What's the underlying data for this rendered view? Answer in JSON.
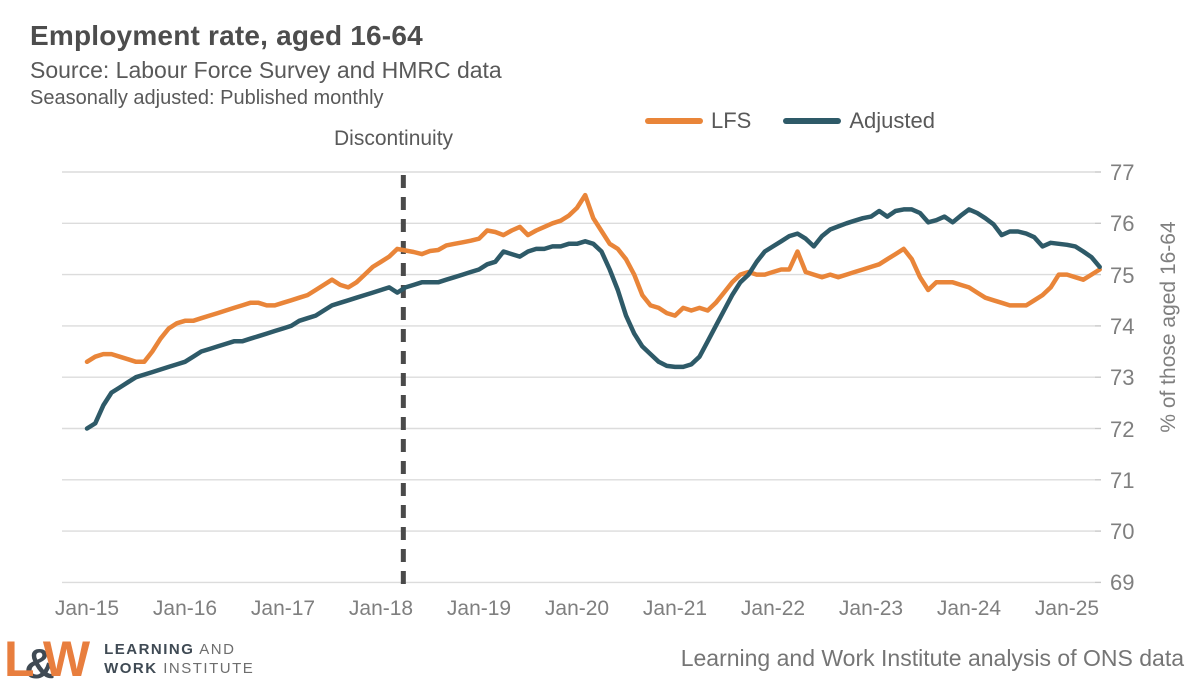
{
  "header": {
    "title": "Employment rate, aged 16-64",
    "source_line": "Source: Labour Force Survey and HMRC data",
    "adjusted_line": "Seasonally adjusted: Published monthly"
  },
  "annotations": {
    "discontinuity_label": "Discontinuity",
    "discontinuity_position": "2018-03"
  },
  "legend": {
    "items": [
      {
        "label": "LFS",
        "color": "#E98539"
      },
      {
        "label": "Adjusted",
        "color": "#2E5A68"
      }
    ]
  },
  "colors": {
    "lfs_orange": "#E98539",
    "adjusted_teal": "#2E5A68",
    "gridline": "#DCDCDC",
    "tick": "#C8C8C8",
    "dashed_line": "#4A4A4A",
    "title_gray": "#4D4D4D",
    "axis_label_gray": "#7F7F7F"
  },
  "chart_data": {
    "type": "line",
    "title": "Employment rate, aged 16-64",
    "ylabel": "% of those aged 16-64",
    "ylim": [
      69,
      77
    ],
    "y_ticks": [
      69,
      70,
      71,
      72,
      73,
      74,
      75,
      76,
      77
    ],
    "x_tick_labels": [
      "Jan-15",
      "Jan-16",
      "Jan-17",
      "Jan-18",
      "Jan-19",
      "Jan-20",
      "Jan-21",
      "Jan-22",
      "Jan-23",
      "Jan-24",
      "Jan-25"
    ],
    "x_start": "2015-01",
    "x_end": "2025-05",
    "interval": "monthly",
    "grid": "horizontal-only",
    "legend_position": "top",
    "series": [
      {
        "name": "LFS",
        "color": "#E98539",
        "monthly_values": [
          73.3,
          73.4,
          73.45,
          73.45,
          73.4,
          73.35,
          73.3,
          73.3,
          73.5,
          73.75,
          73.95,
          74.05,
          74.1,
          74.1,
          74.15,
          74.2,
          74.25,
          74.3,
          74.35,
          74.4,
          74.45,
          74.45,
          74.4,
          74.4,
          74.45,
          74.5,
          74.55,
          74.6,
          74.7,
          74.8,
          74.9,
          74.8,
          74.75,
          74.85,
          75.0,
          75.15,
          75.25,
          75.35,
          75.5,
          75.47,
          75.44,
          75.4,
          75.46,
          75.48,
          75.57,
          75.6,
          75.63,
          75.66,
          75.7,
          75.86,
          75.83,
          75.77,
          75.86,
          75.93,
          75.77,
          75.86,
          75.93,
          76.0,
          76.05,
          76.15,
          76.3,
          76.55,
          76.1,
          75.85,
          75.6,
          75.5,
          75.3,
          75.0,
          74.6,
          74.4,
          74.35,
          74.25,
          74.2,
          74.35,
          74.3,
          74.35,
          74.3,
          74.45,
          74.65,
          74.85,
          75.0,
          75.05,
          75.0,
          75.0,
          75.05,
          75.1,
          75.1,
          75.45,
          75.05,
          75.0,
          74.95,
          75.0,
          74.95,
          75.0,
          75.05,
          75.1,
          75.15,
          75.2,
          75.3,
          75.4,
          75.5,
          75.3,
          74.95,
          74.7,
          74.85,
          74.85,
          74.85,
          74.8,
          74.75,
          74.65,
          74.55,
          74.5,
          74.45,
          74.4,
          74.4,
          74.4,
          74.5,
          74.6,
          74.75,
          75.0,
          75.0,
          74.95,
          74.9,
          75.0,
          75.1
        ]
      },
      {
        "name": "Adjusted",
        "color": "#2E5A68",
        "monthly_values": [
          72.0,
          72.1,
          72.45,
          72.7,
          72.8,
          72.9,
          73.0,
          73.05,
          73.1,
          73.15,
          73.2,
          73.25,
          73.3,
          73.4,
          73.5,
          73.55,
          73.6,
          73.65,
          73.7,
          73.7,
          73.75,
          73.8,
          73.85,
          73.9,
          73.95,
          74.0,
          74.1,
          74.15,
          74.2,
          74.3,
          74.4,
          74.45,
          74.5,
          74.55,
          74.6,
          74.65,
          74.7,
          74.75,
          74.65,
          74.75,
          74.8,
          74.85,
          74.85,
          74.85,
          74.9,
          74.95,
          75.0,
          75.05,
          75.1,
          75.2,
          75.25,
          75.45,
          75.4,
          75.35,
          75.45,
          75.5,
          75.5,
          75.55,
          75.55,
          75.6,
          75.6,
          75.65,
          75.6,
          75.45,
          75.1,
          74.7,
          74.2,
          73.85,
          73.6,
          73.45,
          73.3,
          73.22,
          73.2,
          73.2,
          73.25,
          73.4,
          73.7,
          74.0,
          74.3,
          74.6,
          74.85,
          75.0,
          75.25,
          75.45,
          75.55,
          75.65,
          75.75,
          75.8,
          75.7,
          75.55,
          75.75,
          75.88,
          75.94,
          76.0,
          76.05,
          76.1,
          76.13,
          76.24,
          76.13,
          76.24,
          76.27,
          76.27,
          76.2,
          76.02,
          76.06,
          76.13,
          76.02,
          76.15,
          76.27,
          76.2,
          76.1,
          75.98,
          75.77,
          75.84,
          75.84,
          75.8,
          75.73,
          75.55,
          75.62,
          75.6,
          75.58,
          75.55,
          75.45,
          75.34,
          75.15
        ]
      }
    ]
  },
  "footer": {
    "logo": {
      "l": "L",
      "amp": "&",
      "w": "W",
      "line1_bold": "LEARNING",
      "line1_rest": " AND",
      "line2_bold": "WORK",
      "line2_rest": " INSTITUTE",
      "orange": "#E87E3E",
      "dark": "#3F4A54",
      "light_gray": "#6E6E6E"
    },
    "attribution": "Learning and Work Institute analysis of ONS data"
  }
}
